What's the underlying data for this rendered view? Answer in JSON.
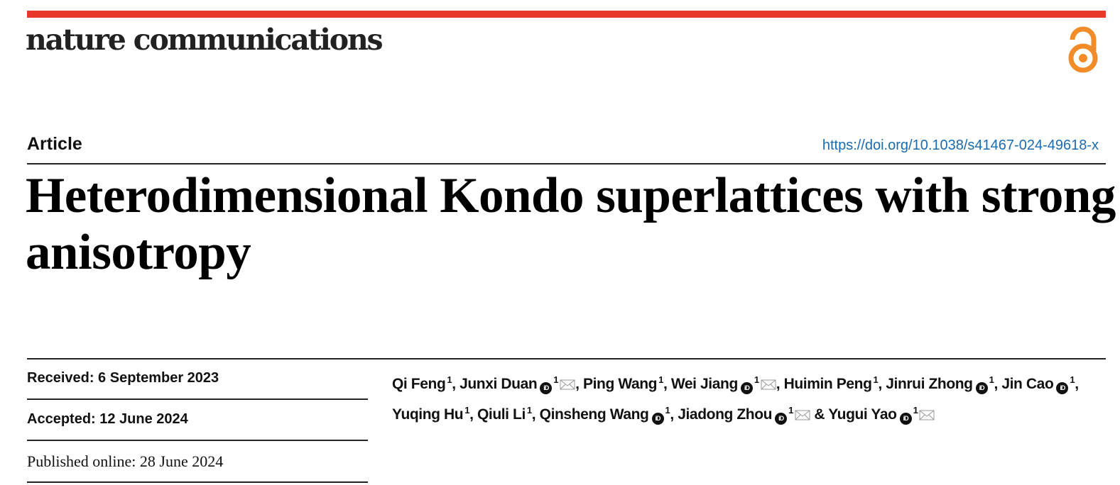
{
  "journal": {
    "name": "nature communications",
    "brand_color": "#e8382a",
    "open_access_icon": "open-access-lock-icon",
    "open_access_color": "#f28c28"
  },
  "article": {
    "type": "Article",
    "doi": "https://doi.org/10.1038/s41467-024-49618-x",
    "title": "Heterodimensional Kondo superlattices with strong anisotropy"
  },
  "dates": {
    "received": "Received: 6 September 2023",
    "accepted": "Accepted: 12 June 2024",
    "published": "Published online: 28 June 2024"
  },
  "authors": [
    {
      "name": "Qi Feng",
      "aff": "1",
      "orcid": false,
      "email": false,
      "sep": ", "
    },
    {
      "name": "Junxi Duan",
      "aff": "1",
      "orcid": true,
      "email": true,
      "sep": ", "
    },
    {
      "name": "Ping Wang",
      "aff": "1",
      "orcid": false,
      "email": false,
      "sep": ", "
    },
    {
      "name": "Wei Jiang",
      "aff": "1",
      "orcid": true,
      "email": true,
      "sep": ", "
    },
    {
      "name": "Huimin Peng",
      "aff": "1",
      "orcid": false,
      "email": false,
      "sep": ", "
    },
    {
      "name": "Jinrui Zhong",
      "aff": "1",
      "orcid": true,
      "email": false,
      "sep": ", "
    },
    {
      "name": "Jin Cao",
      "aff": "1",
      "orcid": true,
      "email": false,
      "sep": ", "
    },
    {
      "name": "Yuqing Hu",
      "aff": "1",
      "orcid": false,
      "email": false,
      "sep": ", "
    },
    {
      "name": "Qiuli Li",
      "aff": "1",
      "orcid": false,
      "email": false,
      "sep": ", "
    },
    {
      "name": "Qinsheng Wang",
      "aff": "1",
      "orcid": true,
      "email": false,
      "sep": ", "
    },
    {
      "name": "Jiadong Zhou",
      "aff": "1",
      "orcid": true,
      "email": true,
      "sep": " & "
    },
    {
      "name": "Yugui Yao",
      "aff": "1",
      "orcid": true,
      "email": true,
      "sep": ""
    }
  ],
  "orcid_label": "iD"
}
